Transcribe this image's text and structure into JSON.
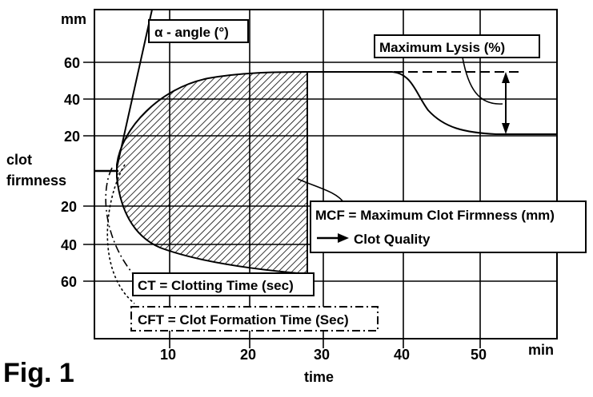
{
  "figure_label": "Fig. 1",
  "axes": {
    "y_unit": "mm",
    "y_label_line1": "clot",
    "y_label_line2": "firmness",
    "y_ticks_upper": [
      "60",
      "40",
      "20"
    ],
    "y_ticks_lower": [
      "20",
      "40",
      "60"
    ],
    "x_ticks": [
      "10",
      "20",
      "30",
      "40",
      "50"
    ],
    "x_unit": "min",
    "x_label": "time"
  },
  "annotations": {
    "alpha_angle": "α - angle (°)",
    "max_lysis": "Maximum Lysis (%)",
    "mcf": "MCF = Maximum Clot Firmness (mm)",
    "clot_quality": "Clot Quality",
    "ct": "CT = Clotting Time (sec)",
    "cft": "CFT = Clot Formation Time (Sec)"
  }
}
